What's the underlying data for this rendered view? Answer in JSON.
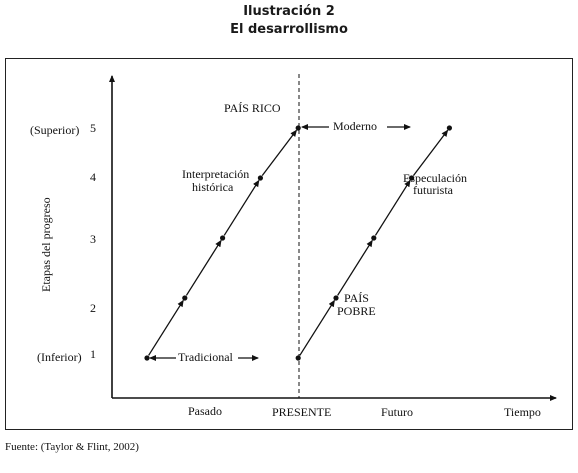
{
  "header": {
    "title": "Ilustración 2",
    "subtitle": "El desarrollismo"
  },
  "diagram": {
    "y_axis_title": "Etapas del progreso",
    "y_top_label": "(Superior)",
    "y_bottom_label": "(Inferior)",
    "y_ticks": [
      "1",
      "2",
      "3",
      "4",
      "5"
    ],
    "x_axis_title": "Tiempo",
    "x_labels": {
      "past": "Pasado",
      "present": "PRESENTE",
      "future": "Futuro"
    },
    "annotations": {
      "rich_country": "PAÍS RICO",
      "modern": "Moderno",
      "historical_line1": "Interpretación",
      "historical_line2": "histórica",
      "speculation_line1": "Especulación",
      "speculation_line2": "futurista",
      "poor_line1": "PAÍS",
      "poor_line2": "POBRE",
      "traditional": "Tradicional"
    },
    "paths": [
      {
        "name": "historical",
        "points": [
          [
            0,
            1
          ],
          [
            1,
            2
          ],
          [
            2,
            3
          ],
          [
            3,
            4
          ],
          [
            4,
            5
          ]
        ]
      },
      {
        "name": "future",
        "points": [
          [
            4,
            1
          ],
          [
            5,
            2
          ],
          [
            6,
            3
          ],
          [
            7,
            4
          ],
          [
            8,
            5
          ]
        ]
      }
    ]
  },
  "footer": {
    "source": "Fuente: (Taylor & Flint, 2002)"
  }
}
